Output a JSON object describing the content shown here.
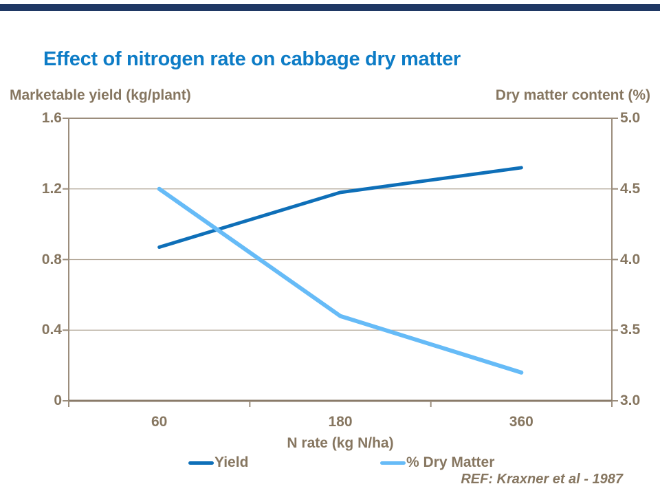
{
  "page": {
    "title": "Effect of nitrogen rate on cabbage dry matter",
    "ref": "REF: Kraxner et al - 1987"
  },
  "colors": {
    "title": "#0D7CC6",
    "axis_text": "#867660",
    "grid": "#B3A898",
    "axis_line": "#9B8D7C",
    "bottom_axis_line": "#8A7B69",
    "top_bar": "#1F3864",
    "yield_line": "#0E6FB8",
    "dry_matter_line": "#66BBF7"
  },
  "chart_data": {
    "type": "line",
    "title": "Effect of nitrogen rate on cabbage dry matter",
    "categories": [
      "60",
      "180",
      "360"
    ],
    "xlabel": "N rate (kg N/ha)",
    "left_axis": {
      "label": "Marketable yield (kg/plant)",
      "ticks": [
        "1.6",
        "1.2",
        "0.8",
        "0.4",
        "0"
      ],
      "min": 0,
      "max": 1.6
    },
    "right_axis": {
      "label": "Dry matter content (%)",
      "ticks": [
        "5.0",
        "4.5",
        "4.0",
        "3.5",
        "3.0"
      ],
      "min": 3.0,
      "max": 5.0
    },
    "series": [
      {
        "name": "Yield",
        "axis": "left",
        "color": "#0E6FB8",
        "values": [
          0.87,
          1.18,
          1.32
        ]
      },
      {
        "name": "% Dry Matter",
        "axis": "right",
        "color": "#66BBF7",
        "values": [
          4.5,
          3.6,
          3.2
        ]
      }
    ],
    "legend_position": "bottom",
    "grid": true,
    "annotation": "REF: Kraxner et al - 1987"
  }
}
